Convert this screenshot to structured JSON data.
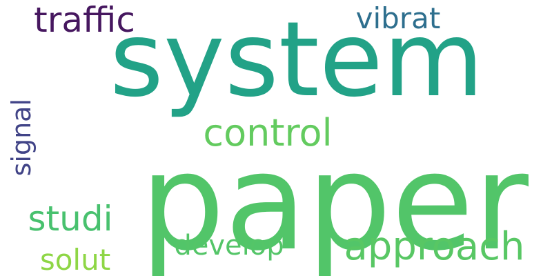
{
  "words": [
    {
      "text": "system",
      "color": "#22A287"
    },
    {
      "text": "paper",
      "color": "#52C569"
    },
    {
      "text": "approach",
      "color": "#58C764"
    },
    {
      "text": "control",
      "color": "#63CB5F"
    },
    {
      "text": "traffic",
      "color": "#46175F"
    },
    {
      "text": "vibrat",
      "color": "#2E6F8E"
    },
    {
      "text": "signal",
      "color": "#414487"
    },
    {
      "text": "studi",
      "color": "#48C16E"
    },
    {
      "text": "develop",
      "color": "#54C568"
    },
    {
      "text": "solut",
      "color": "#8ED645"
    }
  ]
}
